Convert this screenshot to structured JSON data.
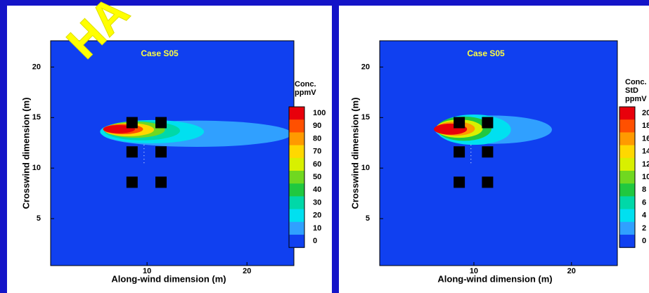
{
  "chart_data": [
    {
      "type": "contour",
      "title": "Case S05",
      "xlabel": "Along-wind dimension (m)",
      "ylabel": "Crosswind dimension (m)",
      "xlim": [
        0.35,
        24.7
      ],
      "ylim": [
        0.35,
        22.6
      ],
      "xticks": [
        10,
        20
      ],
      "yticks": [
        5,
        10,
        15,
        20
      ],
      "colorbar": {
        "title": [
          "Conc.",
          "ppmV"
        ],
        "levels": [
          100,
          90,
          80,
          70,
          60,
          50,
          40,
          30,
          20,
          10,
          0
        ],
        "colors": [
          "#e8000b",
          "#ff5000",
          "#ff9a00",
          "#ffd800",
          "#d8f000",
          "#70d820",
          "#20c840",
          "#00d8a8",
          "#00e0f0",
          "#30a0ff",
          "#1040f0"
        ]
      }
    },
    {
      "type": "contour",
      "title": "Case S05",
      "xlabel": "Along-wind dimension (m)",
      "ylabel": "Crosswind dimension (m)",
      "xlim": [
        0.35,
        24.7
      ],
      "ylim": [
        0.35,
        22.6
      ],
      "xticks": [
        10,
        20
      ],
      "yticks": [
        5,
        10,
        15,
        20
      ],
      "colorbar": {
        "title": [
          "Conc.",
          "StD",
          "ppmV"
        ],
        "levels": [
          20,
          18,
          16,
          14,
          12,
          10,
          8,
          6,
          4,
          2,
          0
        ],
        "colors": [
          "#e8000b",
          "#ff5000",
          "#ff9a00",
          "#ffd800",
          "#d8f000",
          "#70d820",
          "#20c840",
          "#00d8a8",
          "#00e0f0",
          "#30a0ff",
          "#1040f0"
        ]
      }
    }
  ],
  "watermark": "HA"
}
